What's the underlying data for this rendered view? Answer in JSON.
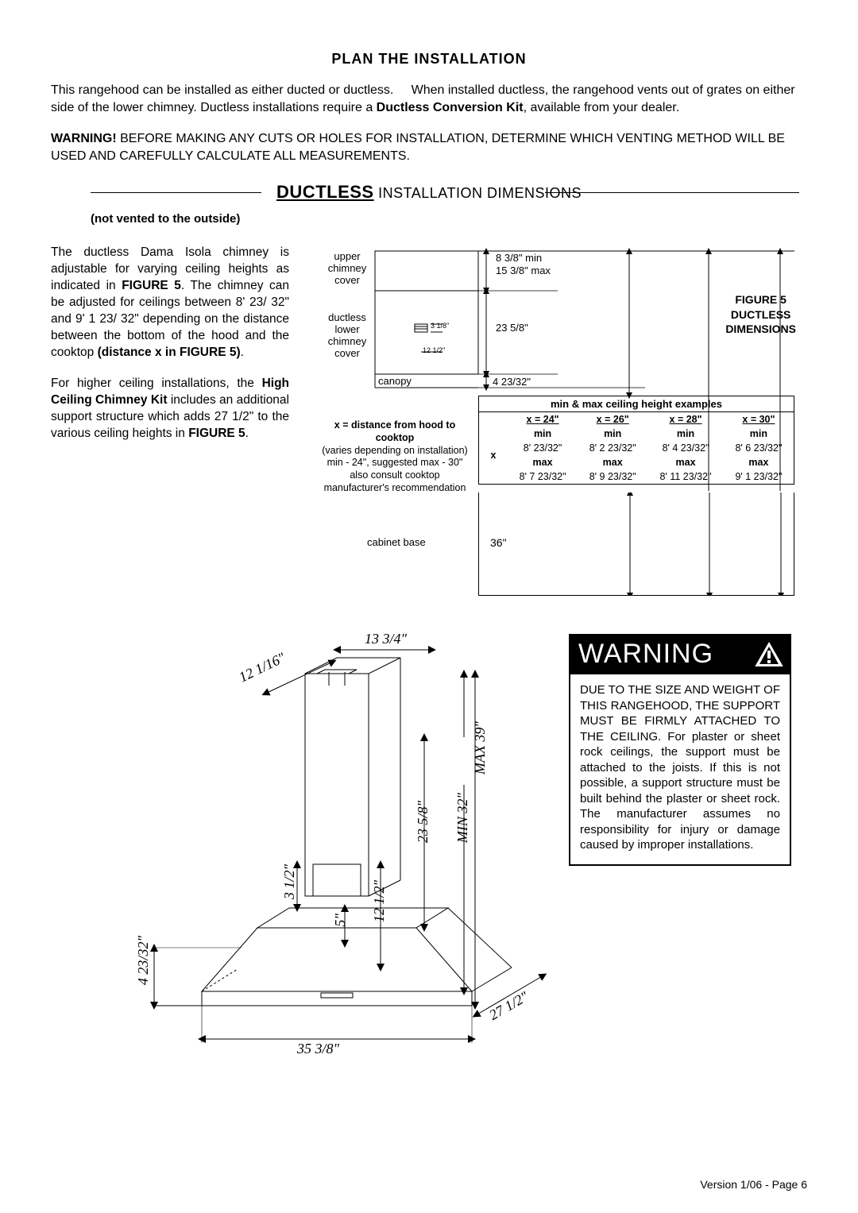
{
  "section_title": "PLAN  THE  INSTALLATION",
  "intro": {
    "p1a": "This rangehood can be installed as either ducted or ductless.",
    "p1b": "When installed ductless, the rangehood vents out of grates on either side of the lower chimney.  Ductless installations require a ",
    "p1bold": "Ductless Conversion Kit",
    "p1c": ", available from your dealer.",
    "p2bold": "WARNING!",
    "p2": "  BEFORE MAKING ANY CUTS OR HOLES FOR INSTALLATION, DETERMINE WHICH VENTING METHOD WILL BE USED AND CAREFULLY CALCULATE ALL MEASUREMENTS."
  },
  "ductless_header": {
    "big": "DUCTLESS",
    "rest": " INSTALLATION  DIMENSIONS"
  },
  "subtitle": "(not vented to the outside)",
  "left_text": {
    "p1a": "The ductless Dama Isola chimney is adjustable for varying ceiling heights as indicated in ",
    "p1bold1": "FIGURE 5",
    "p1b": ". The chimney can be adjusted for ceilings between 8'  23/ 32\" and 9'  1 23/ 32\" depending on the distance between the bottom of the hood and the cooktop ",
    "p1bold2": "(distance x in FIGURE 5)",
    "p1c": ".",
    "p2a": "For higher ceiling installations, the ",
    "p2bold1": "High Ceiling Chimney Kit",
    "p2b": " includes an additional support structure which adds 27 1/2\" to the various ceiling heights in ",
    "p2bold2": "FIGURE 5",
    "p2c": "."
  },
  "fig5": {
    "caption_l1": "FIGURE 5",
    "caption_l2": "DUCTLESS",
    "caption_l3": "DIMENSIONS",
    "upper_chimney": "upper\nchimney\ncover",
    "ductless_lower": "ductless\nlower\nchimney\ncover",
    "canopy": "canopy",
    "dim_inner_1": "3 1/8\"",
    "dim_inner_2": "12 1/2\"",
    "dim_top_min": "8 3/8\" min",
    "dim_top_max": "15 3/8\" max",
    "dim_mid": "23 5/8\"",
    "dim_canopy": "4 23/32\"",
    "note_bold": "x = distance from hood to cooktop",
    "note_l2": "(varies depending on installation)",
    "note_l3": "min - 24\", suggested max - 30\"",
    "note_l4": "also consult cooktop",
    "note_l5": "manufacturer's recommendation",
    "cabinet_label": "cabinet base",
    "cabinet_val": "36\""
  },
  "ceiling_table": {
    "title": "min & max ceiling height examples",
    "xcol": "x",
    "cols": [
      "x = 24\"",
      "x = 26\"",
      "x = 28\"",
      "x = 30\""
    ],
    "min_label": "min",
    "max_label": "max",
    "min_vals": [
      "8' 23/32\"",
      "8' 2 23/32\"",
      "8' 4 23/32\"",
      "8' 6 23/32\""
    ],
    "max_vals": [
      "8' 7 23/32\"",
      "8' 9 23/32\"",
      "8' 11 23/32\"",
      "9' 1 23/32\""
    ]
  },
  "iso_dims": {
    "top_134": "13  3/4\"",
    "angle_12116": "12 1/16\"",
    "vert_39": "MAX   39\"",
    "vert_32": "MIN   32\"",
    "vert_235": "23 5/8\"",
    "vert_312": "3 1/2\"",
    "vert_1212": "12  1/2\"",
    "vert_5": "5\"",
    "left_423": "4  23/32\"",
    "bottom_358": "35  3/8\"",
    "depth_2712": "27  1/2\""
  },
  "warning": {
    "title": "WARNING",
    "body": "DUE TO THE SIZE AND WEIGHT OF THIS RANGEHOOD, THE SUPPORT MUST BE FIRMLY ATTACHED TO THE CEILING.  For plaster or sheet rock ceilings, the support must be attached to the joists.  If this is not possible, a support structure must be built behind the plaster or sheet rock.  The manufacturer assumes no responsibility for injury or damage caused by improper installations."
  },
  "footer": "Version 1/06 - Page 6",
  "colors": {
    "black": "#000000",
    "white": "#ffffff"
  }
}
